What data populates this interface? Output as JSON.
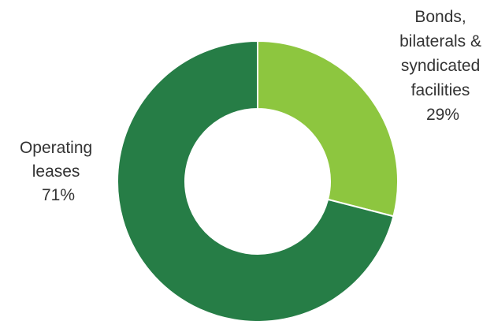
{
  "chart_data": {
    "type": "pie",
    "variant": "donut",
    "title": "",
    "legend": "none",
    "start_angle_deg": 0,
    "direction": "clockwise",
    "slices": [
      {
        "label_lines": [
          "Bonds,",
          "bilaterals &",
          "syndicated",
          "facilities"
        ],
        "value": 29,
        "pct_label": "29%",
        "color": "#8dc63f"
      },
      {
        "label_lines": [
          "Operating",
          "leases"
        ],
        "value": 71,
        "pct_label": "71%",
        "color": "#267d46"
      }
    ]
  }
}
